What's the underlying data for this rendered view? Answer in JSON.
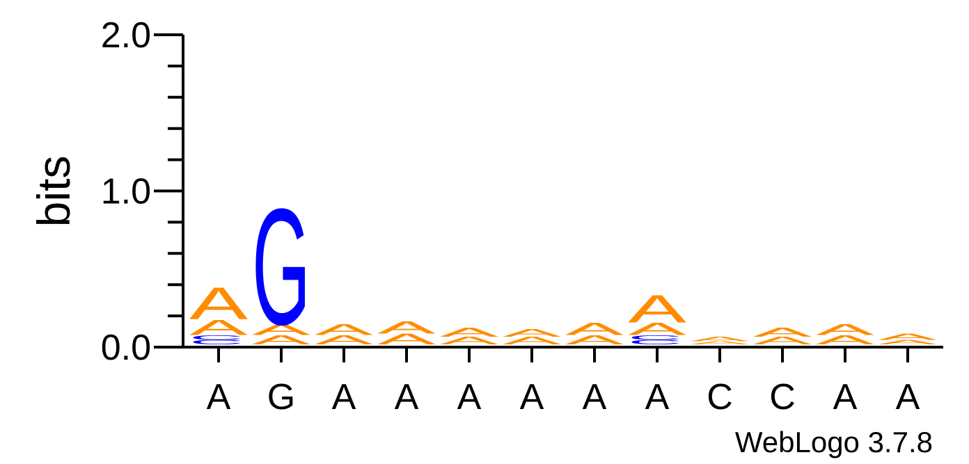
{
  "colors": {
    "A": "#ff8c00",
    "C": "#0000ff",
    "G": "#0000ff",
    "T": "#ff0000",
    "axis": "#000000"
  },
  "chart_data": {
    "type": "sequence-logo",
    "ylabel": "bits",
    "ylim": [
      0,
      2.0
    ],
    "yticks": [
      "0.0",
      "1.0",
      "2.0"
    ],
    "credit": "WebLogo 3.7.8",
    "positions": [
      {
        "label": "A",
        "stack": [
          {
            "base": "C",
            "bits": 0.03
          },
          {
            "base": "C",
            "bits": 0.03
          },
          {
            "base": "A",
            "bits": 0.1
          },
          {
            "base": "A",
            "bits": 0.21
          }
        ]
      },
      {
        "label": "G",
        "stack": [
          {
            "base": "A",
            "bits": 0.06
          },
          {
            "base": "A",
            "bits": 0.07
          },
          {
            "base": "G",
            "bits": 0.76
          }
        ]
      },
      {
        "label": "A",
        "stack": [
          {
            "base": "A",
            "bits": 0.06
          },
          {
            "base": "A",
            "bits": 0.07
          }
        ]
      },
      {
        "label": "A",
        "stack": [
          {
            "base": "A",
            "bits": 0.07
          },
          {
            "base": "A",
            "bits": 0.08
          }
        ]
      },
      {
        "label": "A",
        "stack": [
          {
            "base": "A",
            "bits": 0.05
          },
          {
            "base": "A",
            "bits": 0.06
          }
        ]
      },
      {
        "label": "A",
        "stack": [
          {
            "base": "A",
            "bits": 0.05
          },
          {
            "base": "A",
            "bits": 0.05
          }
        ]
      },
      {
        "label": "A",
        "stack": [
          {
            "base": "A",
            "bits": 0.06
          },
          {
            "base": "A",
            "bits": 0.08
          }
        ]
      },
      {
        "label": "A",
        "stack": [
          {
            "base": "C",
            "bits": 0.03
          },
          {
            "base": "C",
            "bits": 0.03
          },
          {
            "base": "A",
            "bits": 0.08
          },
          {
            "base": "A",
            "bits": 0.18
          }
        ]
      },
      {
        "label": "C",
        "stack": [
          {
            "base": "A",
            "bits": 0.02
          },
          {
            "base": "A",
            "bits": 0.03
          }
        ]
      },
      {
        "label": "C",
        "stack": [
          {
            "base": "A",
            "bits": 0.05
          },
          {
            "base": "A",
            "bits": 0.06
          }
        ]
      },
      {
        "label": "A",
        "stack": [
          {
            "base": "A",
            "bits": 0.06
          },
          {
            "base": "A",
            "bits": 0.07
          }
        ]
      },
      {
        "label": "A",
        "stack": [
          {
            "base": "A",
            "bits": 0.03
          },
          {
            "base": "A",
            "bits": 0.04
          }
        ]
      }
    ]
  }
}
